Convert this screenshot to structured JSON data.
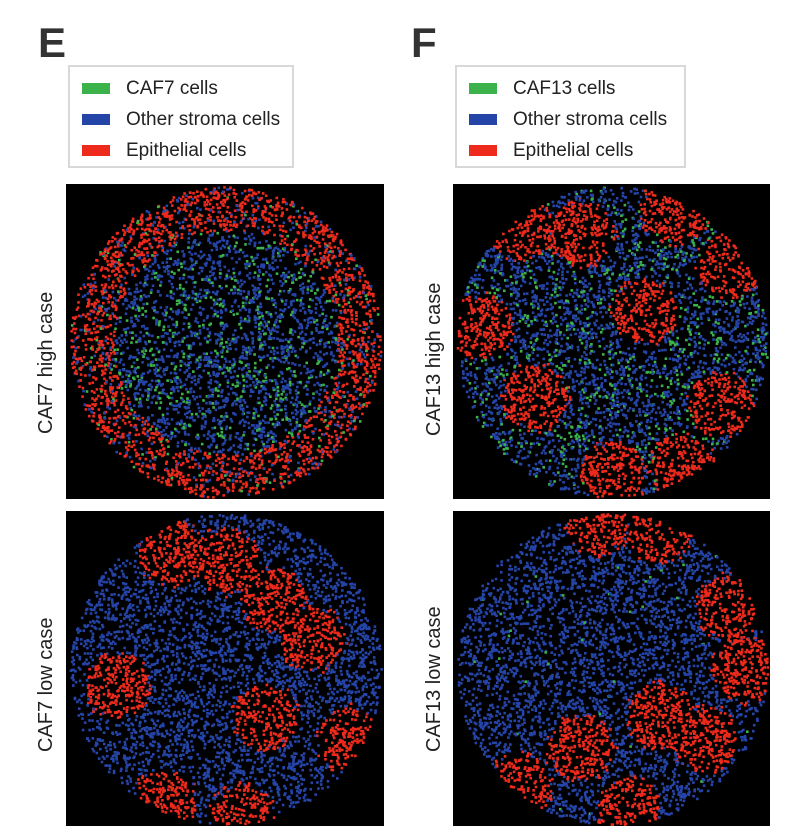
{
  "colors": {
    "green": "#3cb34a",
    "blue": "#2544a8",
    "red": "#ee2a1c",
    "background": "#000000"
  },
  "panels": [
    {
      "letter": "E",
      "legend": [
        "CAF7 cells",
        "Other stroma cells",
        "Epithelial cells"
      ],
      "rows": [
        "CAF7 high case",
        "CAF7 low case"
      ]
    },
    {
      "letter": "F",
      "legend": [
        "CAF13 cells",
        "Other stroma cells",
        "Epithelial cells"
      ],
      "rows": [
        "CAF13 high case",
        "CAF13 low case"
      ]
    }
  ]
}
